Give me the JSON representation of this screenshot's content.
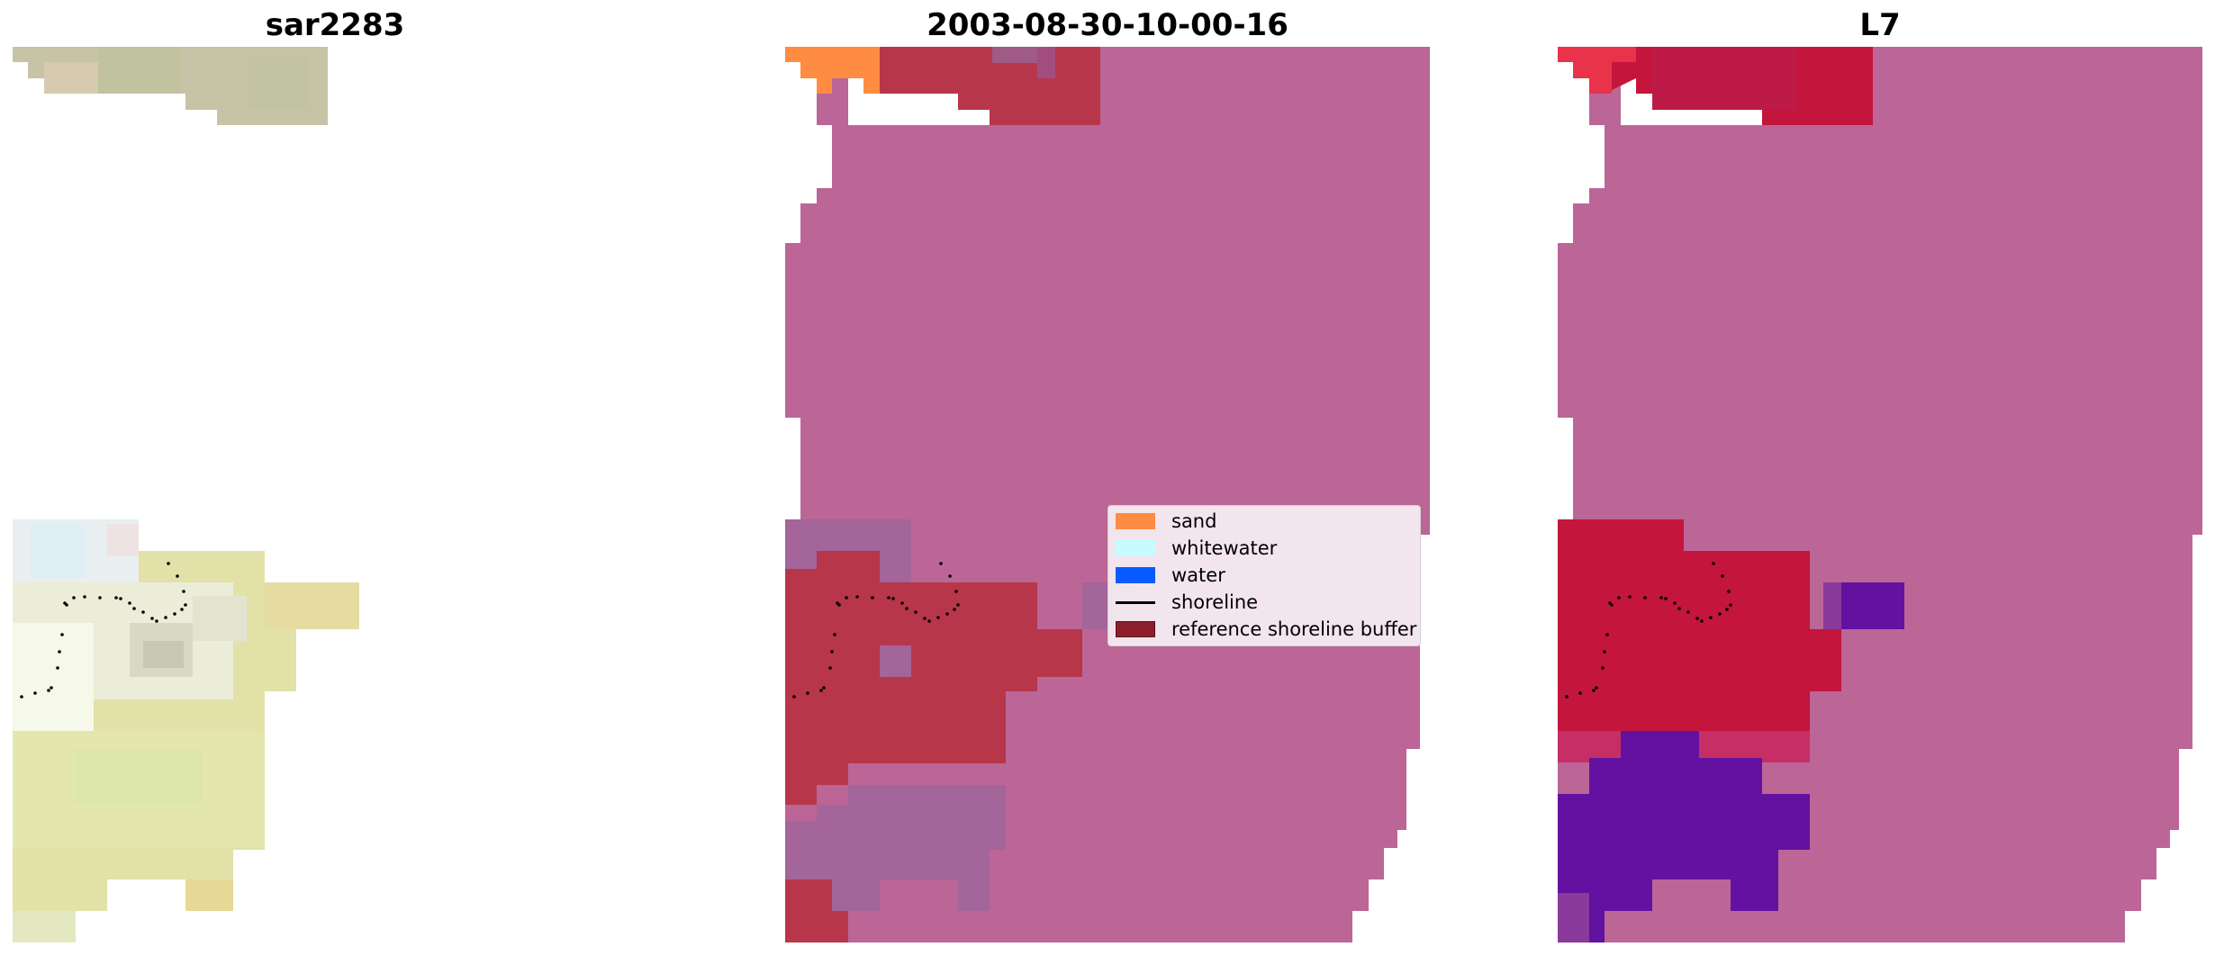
{
  "panels": [
    {
      "title": "sar2283"
    },
    {
      "title": "2003-08-30-10-00-16"
    },
    {
      "title": "L7"
    }
  ],
  "legend": {
    "items": [
      {
        "label": "sand",
        "color": "#ff8c42",
        "kind": "patch"
      },
      {
        "label": "whitewater",
        "color": "#c8fbff",
        "kind": "patch"
      },
      {
        "label": "water",
        "color": "#0a5bff",
        "kind": "patch"
      },
      {
        "label": "shoreline",
        "color": "#000000",
        "kind": "line"
      },
      {
        "label": "reference shoreline buffer",
        "color": "#8b1e2a",
        "kind": "patch"
      }
    ]
  },
  "colors": {
    "background_class": "#bb6697",
    "buffer": "#b8364a",
    "sand": "#ff8c42",
    "purple_region": "#a3659a",
    "probability_red": "#c4153d",
    "probability_violet": "#6311a0"
  }
}
